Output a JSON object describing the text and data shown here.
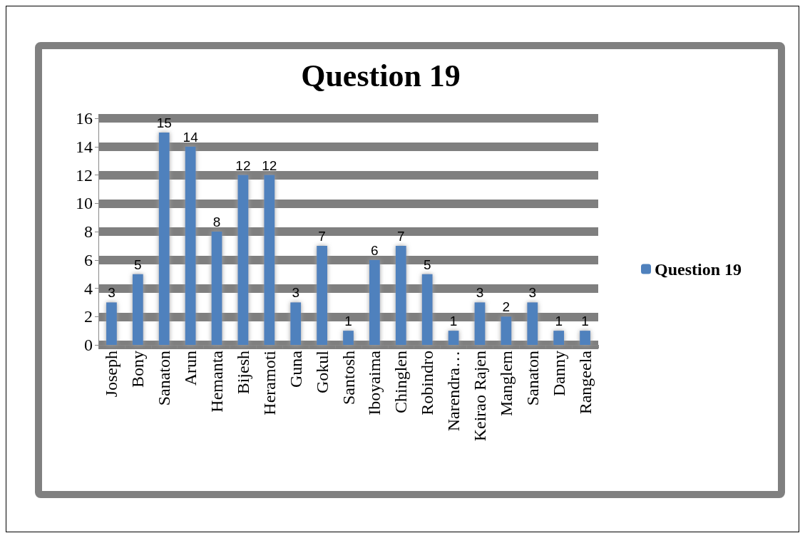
{
  "chart_data": {
    "type": "bar",
    "title": "Question 19",
    "categories": [
      "Joseph",
      "Bony",
      "Sanaton",
      "Arun",
      "Hemanta",
      "Bijesh",
      "Heramoti",
      "Guna",
      "Gokul",
      "Santosh",
      "Iboyaima",
      "Chinglen",
      "Robindro",
      "Narendra…",
      "Keirao Rajen",
      "Manglem",
      "Sanaton",
      "Danny",
      "Rangeela"
    ],
    "series": [
      {
        "name": "Question 19",
        "color": "#4f81bd",
        "values": [
          3,
          5,
          15,
          14,
          8,
          12,
          12,
          3,
          7,
          1,
          6,
          7,
          5,
          1,
          3,
          2,
          3,
          1,
          1
        ]
      }
    ],
    "ylim": [
      0,
      16
    ],
    "yticks": [
      0,
      2,
      4,
      6,
      8,
      10,
      12,
      14,
      16
    ],
    "grid": "y",
    "legend": "right",
    "data_labels": true
  }
}
